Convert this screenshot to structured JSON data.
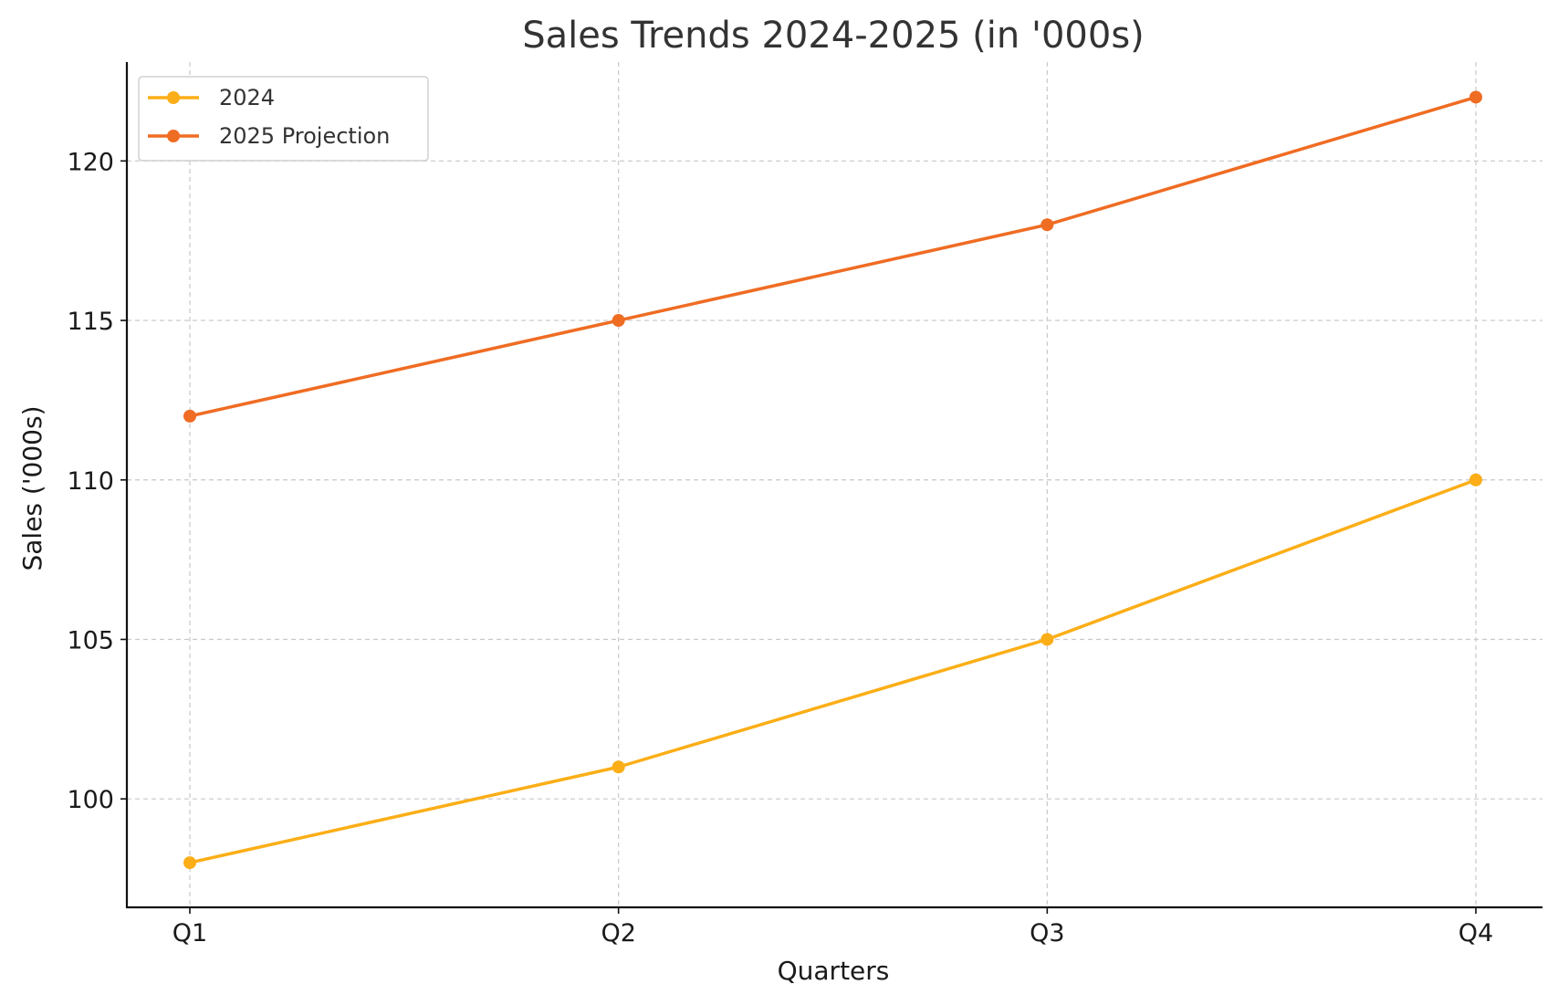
{
  "chart_data": {
    "type": "line",
    "title": "Sales Trends 2024-2025 (in '000s)",
    "xlabel": "Quarters",
    "ylabel": "Sales ('000s)",
    "categories": [
      "Q1",
      "Q2",
      "Q3",
      "Q4"
    ],
    "ylim": [
      96.6,
      123.1
    ],
    "yticks": [
      100,
      105,
      110,
      115,
      120
    ],
    "grid": true,
    "legend_position": "top-left",
    "series": [
      {
        "name": "2024",
        "color": "#FBAE17",
        "marker": "circle",
        "values": [
          98,
          101,
          105,
          110
        ]
      },
      {
        "name": "2025 Projection",
        "color": "#EF6C23",
        "marker": "circle",
        "values": [
          112,
          115,
          118,
          122
        ]
      }
    ]
  }
}
